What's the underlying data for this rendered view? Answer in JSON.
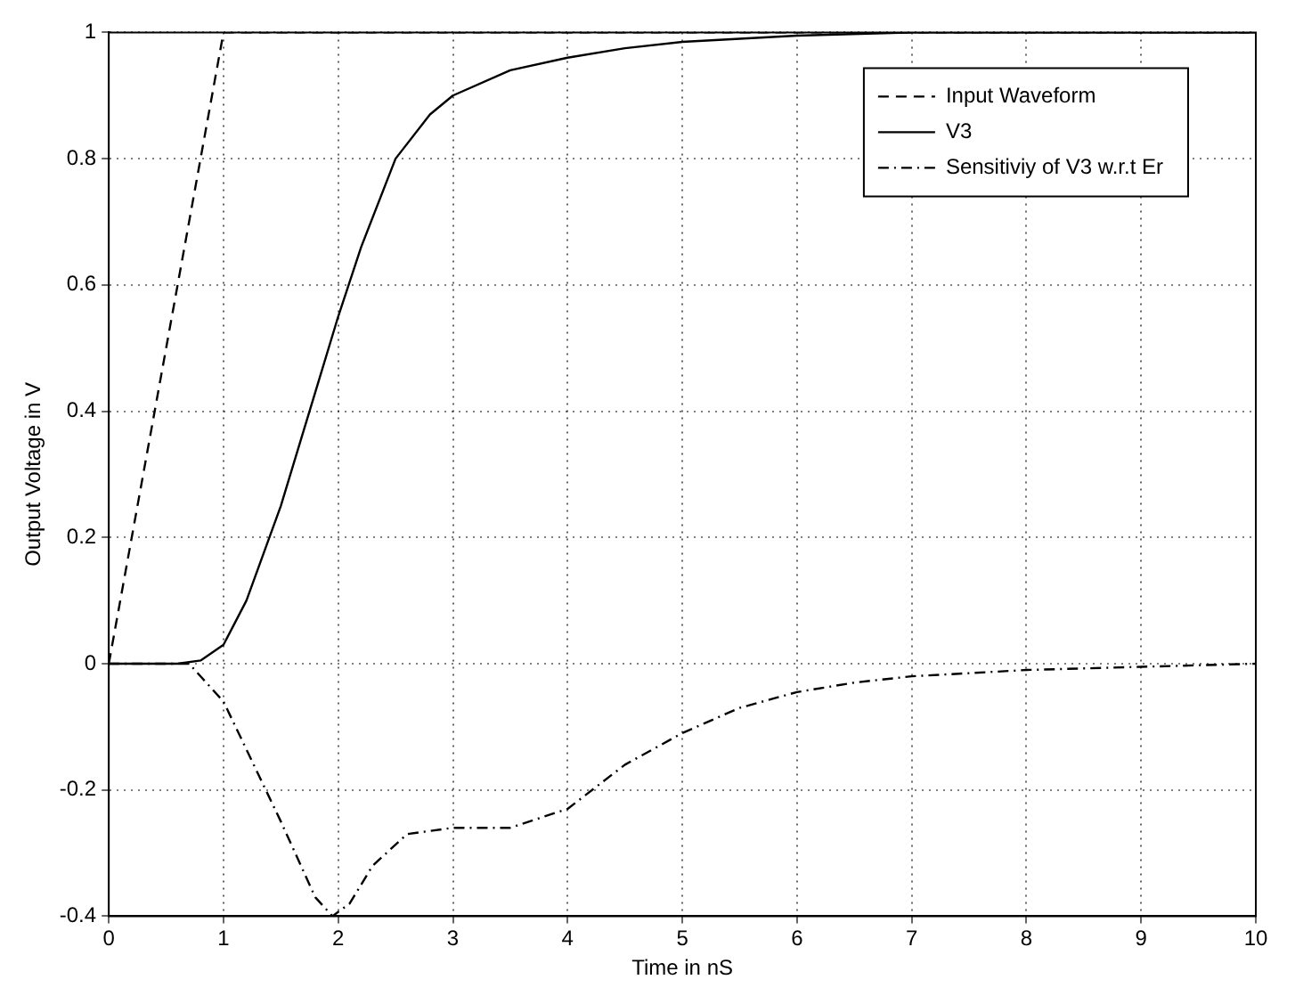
{
  "chart_data": {
    "type": "line",
    "xlabel": "Time in nS",
    "ylabel": "Output Voltage in V",
    "xlim": [
      0,
      10
    ],
    "xticks": [
      0,
      1,
      2,
      3,
      4,
      5,
      6,
      7,
      8,
      9,
      10
    ],
    "ylim": [
      -0.4,
      1
    ],
    "yticks": [
      -0.4,
      -0.2,
      0,
      0.2,
      0.4,
      0.6,
      0.8,
      1
    ],
    "grid": true,
    "legend": "top right",
    "marker": "none",
    "series": [
      {
        "name": "Input Waveform",
        "color": "#000000",
        "line_style": "dashed",
        "x": [
          0,
          1,
          10
        ],
        "values": [
          0,
          1,
          1
        ]
      },
      {
        "name": "V3",
        "color": "#000000",
        "line_style": "solid",
        "x": [
          0,
          0.6,
          0.8,
          1,
          1.2,
          1.5,
          1.8,
          2,
          2.2,
          2.5,
          2.8,
          3,
          3.5,
          4,
          4.5,
          5,
          6,
          7,
          10
        ],
        "values": [
          0,
          0,
          0.005,
          0.03,
          0.1,
          0.25,
          0.43,
          0.55,
          0.66,
          0.8,
          0.87,
          0.9,
          0.94,
          0.96,
          0.975,
          0.985,
          0.995,
          1,
          1
        ]
      },
      {
        "name": "Sensitiviy of V3 w.r.t Er",
        "color": "#000000",
        "line_style": "dashdot",
        "x": [
          0,
          0.7,
          1,
          1.5,
          1.8,
          1.95,
          2.1,
          2.3,
          2.6,
          3,
          3.5,
          4,
          4.5,
          5,
          5.5,
          6,
          6.5,
          7,
          8,
          9,
          10
        ],
        "values": [
          0,
          0,
          -0.06,
          -0.25,
          -0.37,
          -0.4,
          -0.38,
          -0.32,
          -0.27,
          -0.26,
          -0.26,
          -0.23,
          -0.16,
          -0.11,
          -0.07,
          -0.045,
          -0.03,
          -0.02,
          -0.01,
          -0.005,
          0
        ]
      }
    ]
  }
}
